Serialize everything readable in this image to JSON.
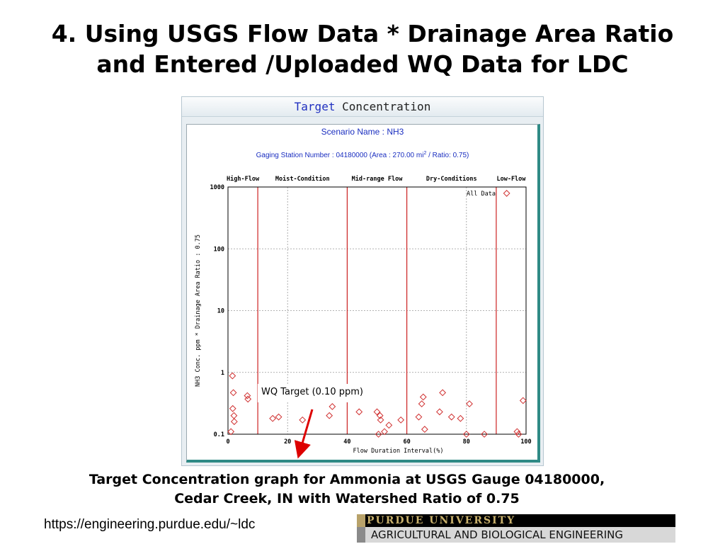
{
  "slide": {
    "title_line1": "4. Using USGS Flow Data * Drainage Area Ratio",
    "title_line2": "and Entered /Uploaded WQ Data for LDC",
    "caption_line1": "Target Concentration graph for Ammonia at USGS Gauge 04180000,",
    "caption_line2": "Cedar Creek, IN with Watershed Ratio of 0.75",
    "url": "https://engineering.purdue.edu/~ldc"
  },
  "panel": {
    "title_word1": "Target",
    "title_word2": "Concentration"
  },
  "scenario": {
    "label": "Scenario Name : NH3",
    "station_prefix": "Gaging Station Number : 04180000 (Area : 270.00 mi",
    "station_sup": "2",
    "station_suffix": " / Ratio: 0.75)"
  },
  "annotation": {
    "label": "WQ Target (0.10 ppm)",
    "arrow_color": "#dd0000"
  },
  "logo": {
    "name": "PURDUE UNIVERSITY",
    "dept": "AGRICULTURAL AND BIOLOGICAL ENGINEERING"
  },
  "colors": {
    "marker": "#d03030",
    "boundary": "#cc2222",
    "text_blue": "#1a2ec0"
  },
  "chart_data": {
    "type": "scatter",
    "xlabel": "Flow Duration Interval(%)",
    "ylabel": "NH3 Conc. ppm * Drainage Area Ratio : 0.75",
    "xlim": [
      0,
      100
    ],
    "ylim": [
      0.1,
      1000
    ],
    "y_scale": "log",
    "x_ticks": [
      0,
      20,
      40,
      60,
      80,
      100
    ],
    "y_ticks": [
      0.1,
      1,
      10,
      100,
      1000
    ],
    "y_tick_labels": [
      "0.1",
      "1",
      "10",
      "100",
      "1000"
    ],
    "grid": true,
    "legend": "top-right",
    "flow_boundaries": [
      10,
      40,
      60,
      90
    ],
    "zones": [
      {
        "label": "High-Flow",
        "center": 5
      },
      {
        "label": "Moist-Condition",
        "center": 25
      },
      {
        "label": "Mid-range Flow",
        "center": 50
      },
      {
        "label": "Dry-Conditions",
        "center": 75
      },
      {
        "label": "Low-Flow",
        "center": 95
      }
    ],
    "series": [
      {
        "name": "All Data",
        "points": [
          [
            1.0,
            0.11
          ],
          [
            1.5,
            0.88
          ],
          [
            1.8,
            0.47
          ],
          [
            1.6,
            0.26
          ],
          [
            2.0,
            0.2
          ],
          [
            2.1,
            0.16
          ],
          [
            6.5,
            0.42
          ],
          [
            6.7,
            0.37
          ],
          [
            15.0,
            0.18
          ],
          [
            17.0,
            0.19
          ],
          [
            25.0,
            0.17
          ],
          [
            34.0,
            0.2
          ],
          [
            35.0,
            0.28
          ],
          [
            44.0,
            0.23
          ],
          [
            50.0,
            0.23
          ],
          [
            50.5,
            0.1
          ],
          [
            51.0,
            0.2
          ],
          [
            51.2,
            0.17
          ],
          [
            52.5,
            0.11
          ],
          [
            54.0,
            0.14
          ],
          [
            58.0,
            0.17
          ],
          [
            64.0,
            0.19
          ],
          [
            65.0,
            0.31
          ],
          [
            65.5,
            0.4
          ],
          [
            66.0,
            0.12
          ],
          [
            71.0,
            0.23
          ],
          [
            72.0,
            0.47
          ],
          [
            75.0,
            0.19
          ],
          [
            78.0,
            0.18
          ],
          [
            80.0,
            0.1
          ],
          [
            81.0,
            0.31
          ],
          [
            86.0,
            0.1
          ],
          [
            93.5,
            790
          ],
          [
            97.0,
            0.11
          ],
          [
            97.5,
            0.1
          ],
          [
            99.0,
            0.35
          ]
        ]
      }
    ]
  }
}
